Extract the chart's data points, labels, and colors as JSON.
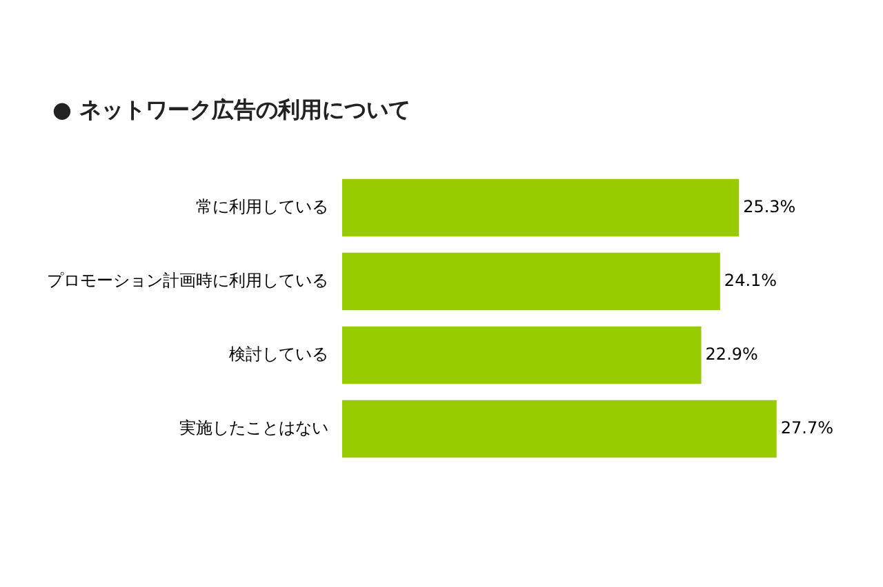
{
  "chart_data": {
    "type": "bar",
    "orientation": "horizontal",
    "title": "● ネットワーク広告の利用について",
    "categories": [
      "常に利用している",
      "プロモーション計画時に利用している",
      "検討している",
      "実施したことはない"
    ],
    "values": [
      25.3,
      24.1,
      22.9,
      27.7
    ],
    "value_labels": [
      "25.3%",
      "24.1%",
      "22.9%",
      "27.7%"
    ],
    "color": "#99cc00",
    "legend": false,
    "tick_labels": "y"
  }
}
